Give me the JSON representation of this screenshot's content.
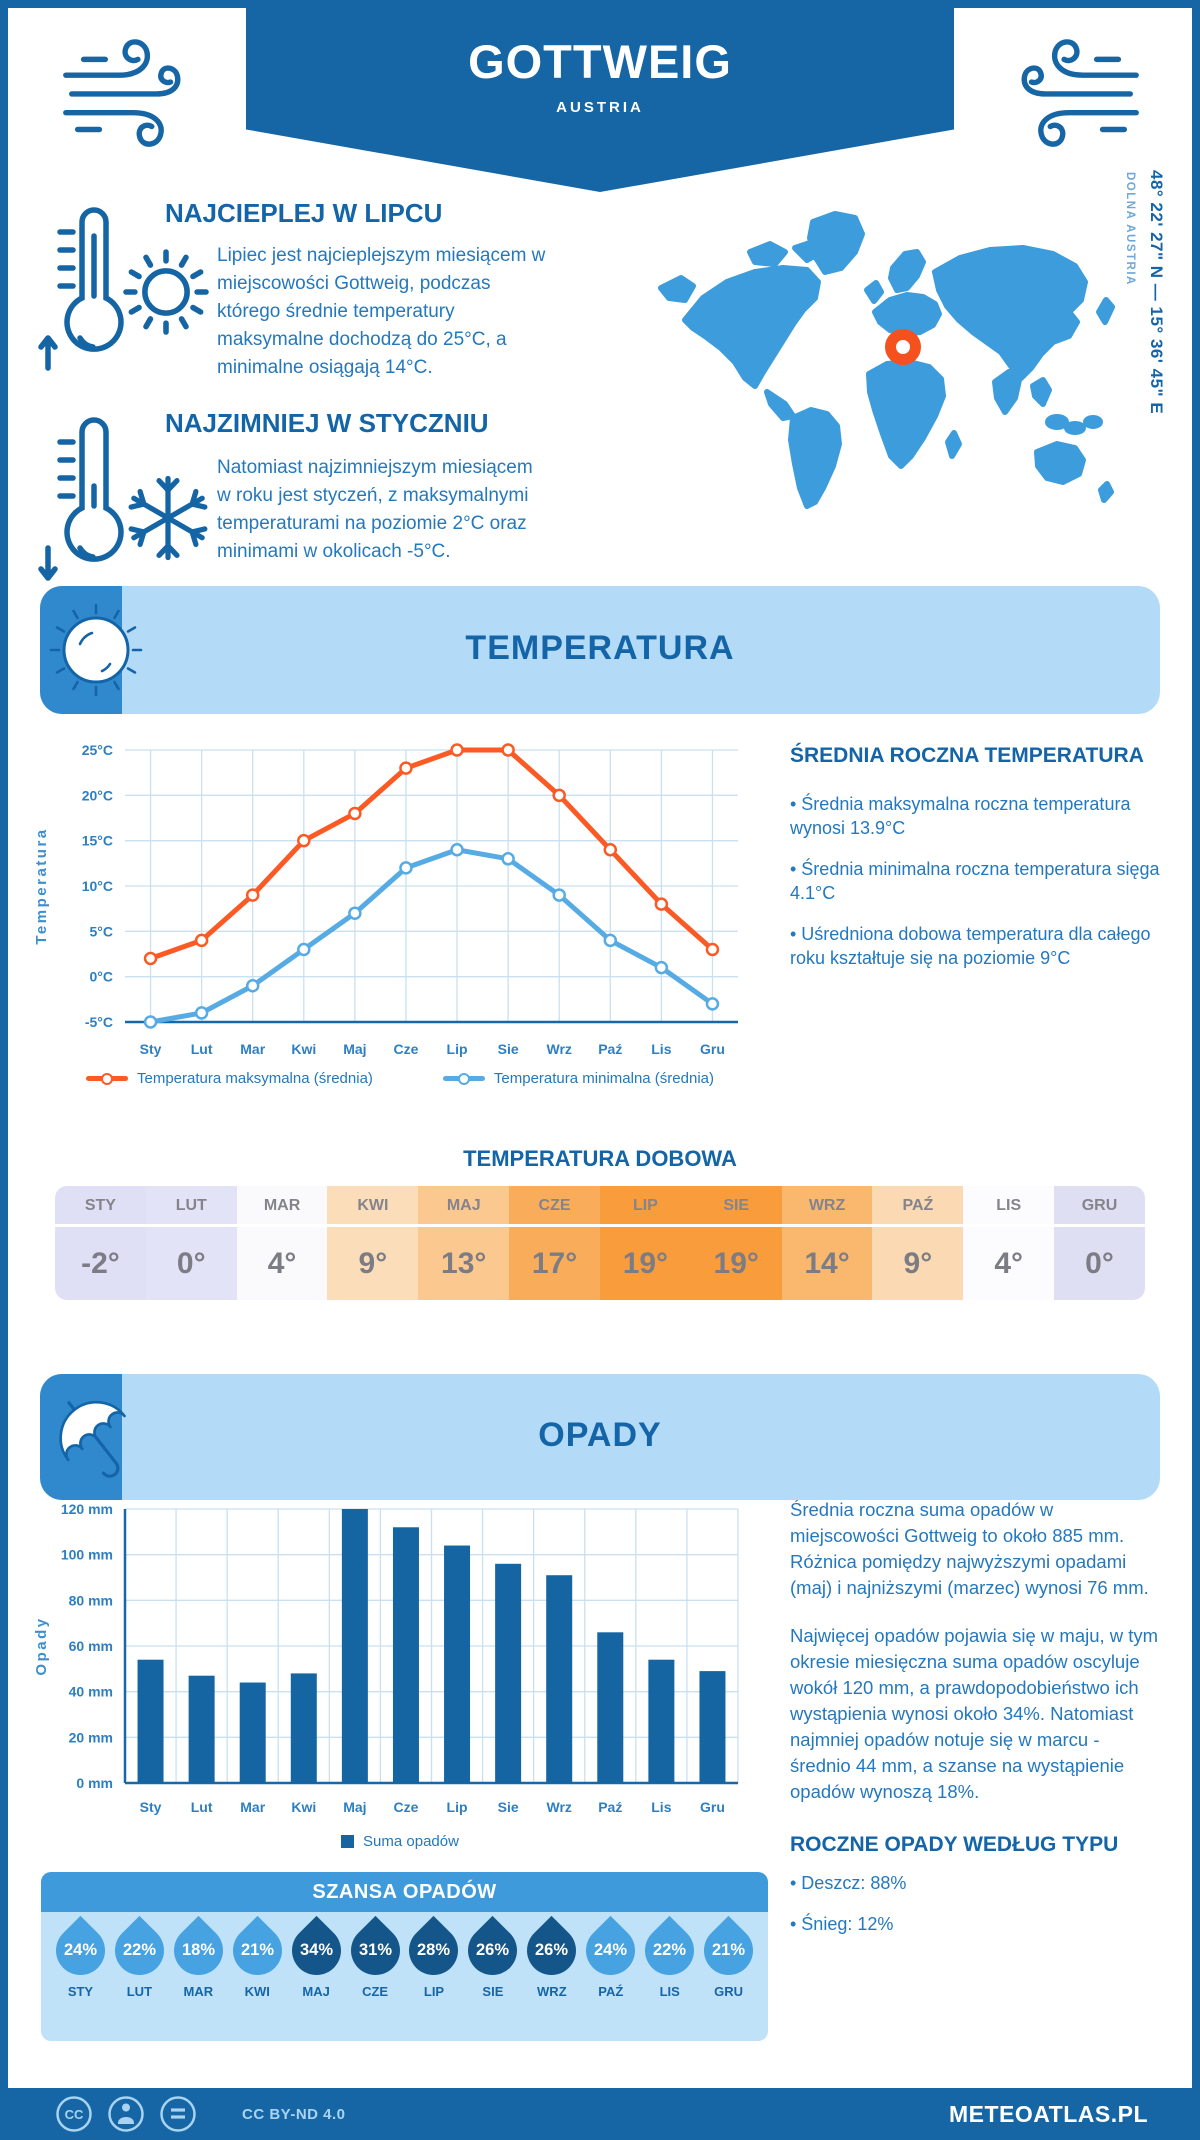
{
  "header": {
    "title": "GOTTWEIG",
    "subtitle": "AUSTRIA"
  },
  "location": {
    "coordinates": "48° 22' 27\" N — 15° 36' 45\" E",
    "region": "DOLNA AUSTRIA"
  },
  "highlights": [
    {
      "title": "NAJCIEPLEJ W LIPCU",
      "text": "Lipiec jest najcieplejszym miesiącem w miejscowości Gottweig, podczas którego średnie temperatury maksymalne dochodzą do 25°C, a minimalne osiągają 14°C."
    },
    {
      "title": "NAJZIMNIEJ W STYCZNIU",
      "text": "Natomiast najzimniejszym miesiącem w roku jest styczeń, z maksymalnymi temperaturami na poziomie 2°C oraz minimami w okolicach -5°C."
    }
  ],
  "temperature_section": {
    "title": "TEMPERATURA",
    "annual_heading": "ŚREDNIA ROCZNA TEMPERATURA",
    "annual_bullets": [
      "• Średnia maksymalna roczna temperatura wynosi 13.9°C",
      "• Średnia minimalna roczna temperatura sięga 4.1°C",
      "• Uśredniona dobowa temperatura dla całego roku kształtuje się na poziomie 9°C"
    ],
    "daily_title": "TEMPERATURA DOBOWA",
    "daily": {
      "months": [
        "STY",
        "LUT",
        "MAR",
        "KWI",
        "MAJ",
        "CZE",
        "LIP",
        "SIE",
        "WRZ",
        "PAŹ",
        "LIS",
        "GRU"
      ],
      "values": [
        "-2°",
        "0°",
        "4°",
        "9°",
        "13°",
        "17°",
        "19°",
        "19°",
        "14°",
        "9°",
        "4°",
        "0°"
      ],
      "cell_colors": [
        "#DFDFF6",
        "#E3E3F8",
        "#FAFAFD",
        "#FCDDBA",
        "#FBC88F",
        "#F9AC59",
        "#F89C3C",
        "#F89C3C",
        "#FAB76E",
        "#FBD9B2",
        "#FCFCFF",
        "#DFDFF4"
      ]
    }
  },
  "precipitation_section": {
    "title": "OPADY",
    "summary_paragraphs": [
      "Średnia roczna suma opadów w miejscowości Gottweig to około 885 mm. Różnica pomiędzy najwyższymi opadami (maj) i najniższymi (marzec) wynosi 76 mm.",
      "Najwięcej opadów pojawia się w maju, w tym okresie miesięczna suma opadów oscyluje wokół 120 mm, a prawdopodobieństwo ich wystąpienia wynosi około 34%. Natomiast najmniej opadów notuje się w marcu - średnio 44 mm, a szanse na wystąpienie opadów wynoszą 18%."
    ],
    "type_heading": "ROCZNE OPADY WEDŁUG TYPU",
    "type_bullets": [
      "• Deszcz: 88%",
      "• Śnieg: 12%"
    ],
    "chance": {
      "title": "SZANSA OPADÓW",
      "months": [
        "STY",
        "LUT",
        "MAR",
        "KWI",
        "MAJ",
        "CZE",
        "LIP",
        "SIE",
        "WRZ",
        "PAŹ",
        "LIS",
        "GRU"
      ],
      "values": [
        "24%",
        "22%",
        "18%",
        "21%",
        "34%",
        "31%",
        "28%",
        "26%",
        "26%",
        "24%",
        "22%",
        "21%"
      ],
      "tones": [
        "light",
        "light",
        "light",
        "light",
        "dark",
        "dark",
        "dark",
        "dark",
        "dark",
        "light",
        "light",
        "light"
      ]
    }
  },
  "chart_data": [
    {
      "type": "line",
      "title": "",
      "categories": [
        "Sty",
        "Lut",
        "Mar",
        "Kwi",
        "Maj",
        "Cze",
        "Lip",
        "Sie",
        "Wrz",
        "Paź",
        "Lis",
        "Gru"
      ],
      "series": [
        {
          "name": "Temperatura maksymalna (średnia)",
          "color": "#FB5A25",
          "values": [
            2,
            4,
            9,
            15,
            18,
            23,
            25,
            25,
            20,
            14,
            8,
            3
          ]
        },
        {
          "name": "Temperatura minimalna (średnia)",
          "color": "#57ABE4",
          "values": [
            -5,
            -4,
            -1,
            3,
            7,
            12,
            14,
            13,
            9,
            4,
            1,
            -3
          ]
        }
      ],
      "xlabel": "",
      "ylabel": "Temperatura",
      "ylim": [
        -5,
        25
      ],
      "ytick_step": 5,
      "ytick_suffix": "°C",
      "grid": true,
      "legend_position": "bottom"
    },
    {
      "type": "bar",
      "title": "",
      "categories": [
        "Sty",
        "Lut",
        "Mar",
        "Kwi",
        "Maj",
        "Cze",
        "Lip",
        "Sie",
        "Wrz",
        "Paź",
        "Lis",
        "Gru"
      ],
      "series": [
        {
          "name": "Suma opadów",
          "color": "#1565A3",
          "values": [
            54,
            47,
            44,
            48,
            120,
            112,
            104,
            96,
            91,
            66,
            54,
            49
          ]
        }
      ],
      "xlabel": "",
      "ylabel": "Opady",
      "ylim": [
        0,
        120
      ],
      "ytick_step": 20,
      "ytick_suffix": " mm",
      "grid": true,
      "legend_position": "bottom"
    }
  ],
  "footer": {
    "license": "CC BY-ND 4.0",
    "brand": "METEOATLAS.PL"
  },
  "palette": {
    "brand": "#1666A5",
    "heading": "#1464A8",
    "body_text": "#2478BE",
    "banner_bg": "#B3DBF8",
    "banner_corner": "#3089CD",
    "grid": "#C9E0F2",
    "axis": "#1767A9",
    "map_blue": "#3D9CDC",
    "marker_orange": "#F4511E",
    "drop_light": "#46A2E1",
    "drop_dark": "#15568A"
  }
}
